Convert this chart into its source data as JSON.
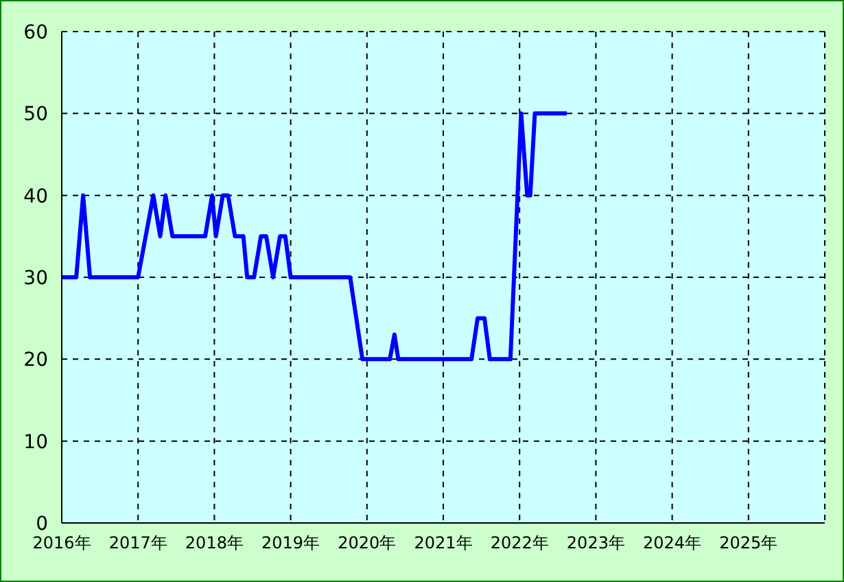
{
  "chart_data": {
    "type": "line",
    "x": [
      2016.0,
      2016.19,
      2016.28,
      2016.37,
      2017.0,
      2017.2,
      2017.29,
      2017.36,
      2017.45,
      2017.88,
      2017.97,
      2018.02,
      2018.11,
      2018.18,
      2018.27,
      2018.38,
      2018.43,
      2018.52,
      2018.61,
      2018.68,
      2018.77,
      2018.86,
      2018.93,
      2019.0,
      2019.78,
      2019.94,
      2020.3,
      2020.36,
      2020.41,
      2021.37,
      2021.45,
      2021.54,
      2021.61,
      2021.88,
      2022.02,
      2022.1,
      2022.14,
      2022.2,
      2022.62
    ],
    "series": [
      {
        "color": "#0000ff",
        "values": [
          30,
          30,
          40,
          30,
          30,
          40,
          35,
          40,
          35,
          35,
          40,
          35,
          40,
          40,
          35,
          35,
          30,
          30,
          35,
          35,
          30,
          35,
          35,
          30,
          30,
          20,
          20,
          23,
          20,
          20,
          25,
          25,
          20,
          20,
          50,
          40,
          40,
          50,
          50
        ]
      }
    ],
    "xlim": [
      2016,
      2026
    ],
    "xticks": [
      {
        "value": 2016,
        "label": "2016年"
      },
      {
        "value": 2017,
        "label": "2017年"
      },
      {
        "value": 2018,
        "label": "2018年"
      },
      {
        "value": 2019,
        "label": "2019年"
      },
      {
        "value": 2020,
        "label": "2020年"
      },
      {
        "value": 2021,
        "label": "2021年"
      },
      {
        "value": 2022,
        "label": "2022年"
      },
      {
        "value": 2023,
        "label": "2023年"
      },
      {
        "value": 2024,
        "label": "2024年"
      },
      {
        "value": 2025,
        "label": "2025年"
      }
    ],
    "ylim": [
      0,
      60
    ],
    "yticks": [
      0,
      10,
      20,
      30,
      40,
      50,
      60
    ],
    "grid": true,
    "marker": "none",
    "line_style": "solid"
  }
}
